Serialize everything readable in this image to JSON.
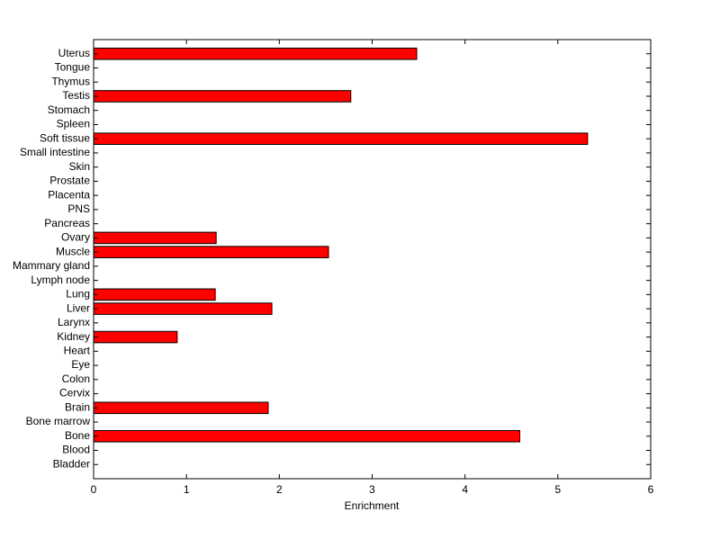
{
  "chart_data": {
    "type": "barh",
    "xlabel": "Enrichment",
    "categories": [
      "Bladder",
      "Blood",
      "Bone",
      "Bone marrow",
      "Brain",
      "Cervix",
      "Colon",
      "Eye",
      "Heart",
      "Kidney",
      "Larynx",
      "Liver",
      "Lung",
      "Lymph node",
      "Mammary gland",
      "Muscle",
      "Ovary",
      "Pancreas",
      "PNS",
      "Placenta",
      "Prostate",
      "Skin",
      "Small intestine",
      "Soft tissue",
      "Spleen",
      "Stomach",
      "Testis",
      "Thymus",
      "Tongue",
      "Uterus"
    ],
    "values": [
      0,
      0,
      4.59,
      0,
      1.88,
      0,
      0,
      0,
      0,
      0.9,
      0,
      1.92,
      1.31,
      0,
      0,
      2.53,
      1.32,
      0,
      0,
      0,
      0,
      0,
      0,
      5.32,
      0,
      0,
      2.77,
      0,
      0,
      3.48
    ],
    "color": "#ff0000",
    "xlim": [
      0,
      6
    ],
    "xticks": [
      0,
      1,
      2,
      3,
      4,
      5,
      6
    ]
  }
}
